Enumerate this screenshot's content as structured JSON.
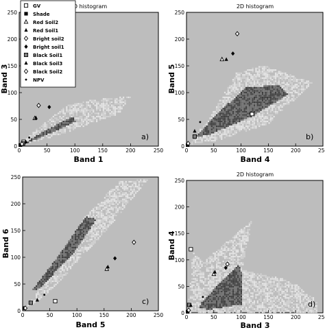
{
  "chart_data": [
    {
      "type": "scatter",
      "title": "2D histogram",
      "xlabel": "Band 1",
      "ylabel": "Band 3",
      "panel_label": "a)",
      "xlim": [
        0,
        250
      ],
      "ylim": [
        0,
        250
      ],
      "xticks": [
        "0",
        "50",
        "100",
        "150",
        "200",
        "250"
      ],
      "yticks": [
        "0",
        "50",
        "100",
        "150",
        "200",
        "250"
      ],
      "legend_position": "top-left",
      "endmembers": [
        {
          "name": "GV",
          "marker": "open-square",
          "x": 8,
          "y": 8
        },
        {
          "name": "Shade",
          "marker": "filled-square",
          "x": 2,
          "y": 2
        },
        {
          "name": "Red Soil2",
          "marker": "open-triangle",
          "x": 28,
          "y": 52
        },
        {
          "name": "Red Soil1",
          "marker": "filled-triangle",
          "x": 30,
          "y": 53
        },
        {
          "name": "Bright soil2",
          "marker": "open-diamond",
          "x": 35,
          "y": 76
        },
        {
          "name": "Bright soil1",
          "marker": "filled-diamond",
          "x": 54,
          "y": 73
        },
        {
          "name": "Black Soil1",
          "marker": "gray-square",
          "x": 7,
          "y": 5
        },
        {
          "name": "Black Soil3",
          "marker": "filled-triangle",
          "x": 12,
          "y": 8
        },
        {
          "name": "Black Soil2",
          "marker": "open-diamond",
          "x": 5,
          "y": 4
        },
        {
          "name": "NPV",
          "marker": "dot",
          "x": 18,
          "y": 16
        }
      ]
    },
    {
      "type": "scatter",
      "title": "2D histogram",
      "xlabel": "Band 4",
      "ylabel": "Band 5",
      "panel_label": "b)",
      "xlim": [
        0,
        250
      ],
      "ylim": [
        0,
        250
      ],
      "xticks": [
        "0",
        "50",
        "100",
        "150",
        "200",
        "250"
      ],
      "yticks": [
        "0",
        "50",
        "100",
        "150",
        "200",
        "250"
      ],
      "endmembers": [
        {
          "name": "GV",
          "marker": "open-square",
          "x": 120,
          "y": 60
        },
        {
          "name": "Shade",
          "marker": "filled-square",
          "x": 2,
          "y": 2
        },
        {
          "name": "Red Soil2",
          "marker": "open-triangle",
          "x": 65,
          "y": 162
        },
        {
          "name": "Red Soil1",
          "marker": "filled-triangle",
          "x": 73,
          "y": 162
        },
        {
          "name": "Bright soil2",
          "marker": "open-diamond",
          "x": 93,
          "y": 210
        },
        {
          "name": "Bright soil1",
          "marker": "filled-diamond",
          "x": 85,
          "y": 173
        },
        {
          "name": "Black Soil1",
          "marker": "gray-square",
          "x": 15,
          "y": 18
        },
        {
          "name": "Black Soil3",
          "marker": "filled-triangle",
          "x": 15,
          "y": 28
        },
        {
          "name": "Black Soil2",
          "marker": "open-diamond",
          "x": 3,
          "y": 5
        },
        {
          "name": "NPV",
          "marker": "dot",
          "x": 25,
          "y": 45
        }
      ]
    },
    {
      "type": "scatter",
      "title": "",
      "xlabel": "Band 5",
      "ylabel": "Band 6",
      "panel_label": "c)",
      "xlim": [
        0,
        250
      ],
      "ylim": [
        0,
        250
      ],
      "xticks": [
        "0",
        "50",
        "100",
        "150",
        "200",
        "250"
      ],
      "yticks": [
        "0",
        "50",
        "100",
        "150",
        "200",
        "250"
      ],
      "endmembers": [
        {
          "name": "GV",
          "marker": "open-square",
          "x": 60,
          "y": 18
        },
        {
          "name": "Shade",
          "marker": "filled-square",
          "x": 3,
          "y": 5
        },
        {
          "name": "Red Soil2",
          "marker": "open-triangle",
          "x": 155,
          "y": 78
        },
        {
          "name": "Red Soil1",
          "marker": "filled-triangle",
          "x": 157,
          "y": 82
        },
        {
          "name": "Bright soil2",
          "marker": "open-diamond",
          "x": 205,
          "y": 128
        },
        {
          "name": "Bright soil1",
          "marker": "filled-diamond",
          "x": 170,
          "y": 98
        },
        {
          "name": "Black Soil1",
          "marker": "gray-square",
          "x": 15,
          "y": 15
        },
        {
          "name": "Black Soil3",
          "marker": "filled-triangle",
          "x": 27,
          "y": 20
        },
        {
          "name": "Black Soil2",
          "marker": "open-diamond",
          "x": 5,
          "y": 5
        },
        {
          "name": "NPV",
          "marker": "dot",
          "x": 40,
          "y": 30
        }
      ]
    },
    {
      "type": "scatter",
      "title": "2D histogram",
      "xlabel": "Band 3",
      "ylabel": "Band 4",
      "panel_label": "d)",
      "xlim": [
        0,
        250
      ],
      "ylim": [
        0,
        250
      ],
      "xticks": [
        "0",
        "50",
        "100",
        "150",
        "200",
        "250"
      ],
      "yticks": [
        "0",
        "50",
        "100",
        "150",
        "200",
        "250"
      ],
      "endmembers": [
        {
          "name": "GV",
          "marker": "open-square",
          "x": 8,
          "y": 120
        },
        {
          "name": "Shade",
          "marker": "filled-square",
          "x": 2,
          "y": 2
        },
        {
          "name": "Red Soil2",
          "marker": "open-triangle",
          "x": 50,
          "y": 73
        },
        {
          "name": "Red Soil1",
          "marker": "filled-triangle",
          "x": 52,
          "y": 77
        },
        {
          "name": "Bright soil2",
          "marker": "open-diamond",
          "x": 75,
          "y": 92
        },
        {
          "name": "Bright soil1",
          "marker": "filled-diamond",
          "x": 72,
          "y": 85
        },
        {
          "name": "Black Soil1",
          "marker": "gray-square",
          "x": 5,
          "y": 15
        },
        {
          "name": "Black Soil3",
          "marker": "filled-triangle",
          "x": 8,
          "y": 14
        },
        {
          "name": "Black Soil2",
          "marker": "open-diamond",
          "x": 4,
          "y": 5
        },
        {
          "name": "NPV",
          "marker": "dot",
          "x": 30,
          "y": 30
        }
      ]
    }
  ],
  "legend": {
    "entries": [
      {
        "name": "GV",
        "marker": "open-square"
      },
      {
        "name": "Shade",
        "marker": "filled-square"
      },
      {
        "name": "Red Soil2",
        "marker": "open-triangle"
      },
      {
        "name": "Red Soil1",
        "marker": "filled-triangle"
      },
      {
        "name": "Bright soil2",
        "marker": "open-diamond"
      },
      {
        "name": "Bright soil1",
        "marker": "filled-diamond"
      },
      {
        "name": "Black Soil1",
        "marker": "gray-square"
      },
      {
        "name": "Black Soil3",
        "marker": "filled-triangle"
      },
      {
        "name": "Black Soil2",
        "marker": "open-diamond"
      },
      {
        "name": "NPV",
        "marker": "dot"
      }
    ]
  },
  "colors": {
    "plot_background": "#bdbdbd",
    "density_light": "#e6e6e6",
    "density_dark": "#3a3a3a",
    "marker": "#000000"
  }
}
